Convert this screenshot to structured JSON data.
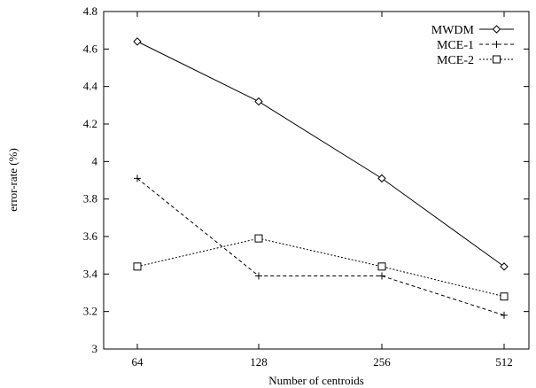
{
  "chart_data": {
    "type": "line",
    "title": "",
    "xlabel": "Number of centroids",
    "ylabel": "error-rate (%)",
    "categories": [
      "64",
      "128",
      "256",
      "512"
    ],
    "ylim": [
      3,
      4.8
    ],
    "yticks": [
      "3",
      "3.2",
      "3.4",
      "3.6",
      "3.8",
      "4",
      "4.2",
      "4.4",
      "4.6",
      "4.8"
    ],
    "grid": false,
    "legend_position": "top-right",
    "series": [
      {
        "name": "MWDM",
        "values": [
          4.64,
          4.32,
          3.91,
          3.44
        ],
        "marker": "diamond",
        "line": "solid",
        "color": "#000000"
      },
      {
        "name": "MCE-1",
        "values": [
          3.91,
          3.39,
          3.39,
          3.18
        ],
        "marker": "plus",
        "line": "dashed",
        "color": "#000000"
      },
      {
        "name": "MCE-2",
        "values": [
          3.44,
          3.59,
          3.44,
          3.28
        ],
        "marker": "square",
        "line": "dotted",
        "color": "#000000"
      }
    ]
  }
}
